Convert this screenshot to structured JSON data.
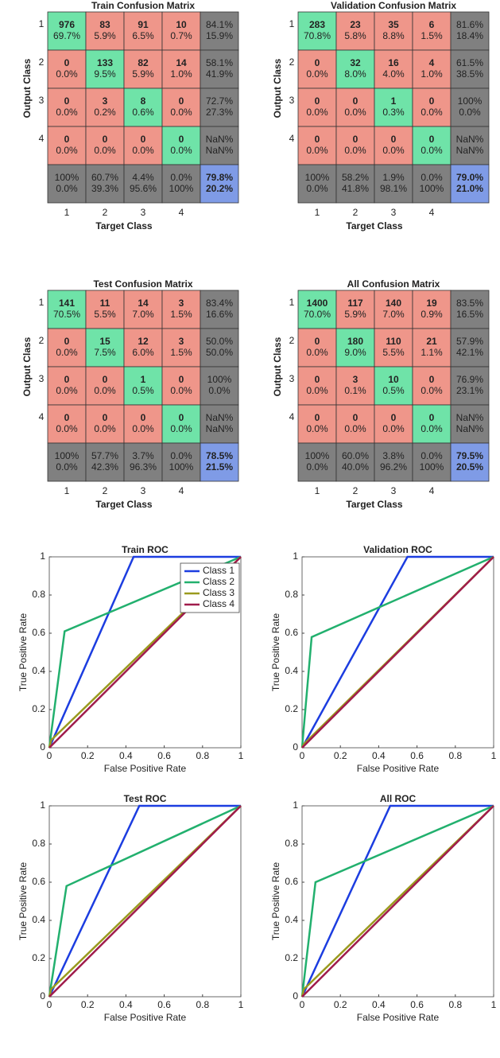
{
  "confusion_matrices": [
    {
      "title": "Train Confusion Matrix",
      "ylabel": "Output Class",
      "xlabel": "Target Class",
      "row_labels": [
        "1",
        "2",
        "3",
        "4"
      ],
      "col_labels": [
        "1",
        "2",
        "3",
        "4"
      ],
      "cells": [
        [
          [
            "976",
            "69.7%"
          ],
          [
            "83",
            "5.9%"
          ],
          [
            "91",
            "6.5%"
          ],
          [
            "10",
            "0.7%"
          ],
          [
            "84.1%",
            "15.9%"
          ]
        ],
        [
          [
            "0",
            "0.0%"
          ],
          [
            "133",
            "9.5%"
          ],
          [
            "82",
            "5.9%"
          ],
          [
            "14",
            "1.0%"
          ],
          [
            "58.1%",
            "41.9%"
          ]
        ],
        [
          [
            "0",
            "0.0%"
          ],
          [
            "3",
            "0.2%"
          ],
          [
            "8",
            "0.6%"
          ],
          [
            "0",
            "0.0%"
          ],
          [
            "72.7%",
            "27.3%"
          ]
        ],
        [
          [
            "0",
            "0.0%"
          ],
          [
            "0",
            "0.0%"
          ],
          [
            "0",
            "0.0%"
          ],
          [
            "0",
            "0.0%"
          ],
          [
            "NaN%",
            "NaN%"
          ]
        ],
        [
          [
            "100%",
            "0.0%"
          ],
          [
            "60.7%",
            "39.3%"
          ],
          [
            "4.4%",
            "95.6%"
          ],
          [
            "0.0%",
            "100%"
          ],
          [
            "79.8%",
            "20.2%"
          ]
        ]
      ]
    },
    {
      "title": "Validation Confusion Matrix",
      "ylabel": "Output Class",
      "xlabel": "Target Class",
      "row_labels": [
        "1",
        "2",
        "3",
        "4"
      ],
      "col_labels": [
        "1",
        "2",
        "3",
        "4"
      ],
      "cells": [
        [
          [
            "283",
            "70.8%"
          ],
          [
            "23",
            "5.8%"
          ],
          [
            "35",
            "8.8%"
          ],
          [
            "6",
            "1.5%"
          ],
          [
            "81.6%",
            "18.4%"
          ]
        ],
        [
          [
            "0",
            "0.0%"
          ],
          [
            "32",
            "8.0%"
          ],
          [
            "16",
            "4.0%"
          ],
          [
            "4",
            "1.0%"
          ],
          [
            "61.5%",
            "38.5%"
          ]
        ],
        [
          [
            "0",
            "0.0%"
          ],
          [
            "0",
            "0.0%"
          ],
          [
            "1",
            "0.3%"
          ],
          [
            "0",
            "0.0%"
          ],
          [
            "100%",
            "0.0%"
          ]
        ],
        [
          [
            "0",
            "0.0%"
          ],
          [
            "0",
            "0.0%"
          ],
          [
            "0",
            "0.0%"
          ],
          [
            "0",
            "0.0%"
          ],
          [
            "NaN%",
            "NaN%"
          ]
        ],
        [
          [
            "100%",
            "0.0%"
          ],
          [
            "58.2%",
            "41.8%"
          ],
          [
            "1.9%",
            "98.1%"
          ],
          [
            "0.0%",
            "100%"
          ],
          [
            "79.0%",
            "21.0%"
          ]
        ]
      ]
    },
    {
      "title": "Test Confusion Matrix",
      "ylabel": "Output Class",
      "xlabel": "Target Class",
      "row_labels": [
        "1",
        "2",
        "3",
        "4"
      ],
      "col_labels": [
        "1",
        "2",
        "3",
        "4"
      ],
      "cells": [
        [
          [
            "141",
            "70.5%"
          ],
          [
            "11",
            "5.5%"
          ],
          [
            "14",
            "7.0%"
          ],
          [
            "3",
            "1.5%"
          ],
          [
            "83.4%",
            "16.6%"
          ]
        ],
        [
          [
            "0",
            "0.0%"
          ],
          [
            "15",
            "7.5%"
          ],
          [
            "12",
            "6.0%"
          ],
          [
            "3",
            "1.5%"
          ],
          [
            "50.0%",
            "50.0%"
          ]
        ],
        [
          [
            "0",
            "0.0%"
          ],
          [
            "0",
            "0.0%"
          ],
          [
            "1",
            "0.5%"
          ],
          [
            "0",
            "0.0%"
          ],
          [
            "100%",
            "0.0%"
          ]
        ],
        [
          [
            "0",
            "0.0%"
          ],
          [
            "0",
            "0.0%"
          ],
          [
            "0",
            "0.0%"
          ],
          [
            "0",
            "0.0%"
          ],
          [
            "NaN%",
            "NaN%"
          ]
        ],
        [
          [
            "100%",
            "0.0%"
          ],
          [
            "57.7%",
            "42.3%"
          ],
          [
            "3.7%",
            "96.3%"
          ],
          [
            "0.0%",
            "100%"
          ],
          [
            "78.5%",
            "21.5%"
          ]
        ]
      ]
    },
    {
      "title": "All Confusion Matrix",
      "ylabel": "Output Class",
      "xlabel": "Target Class",
      "row_labels": [
        "1",
        "2",
        "3",
        "4"
      ],
      "col_labels": [
        "1",
        "2",
        "3",
        "4"
      ],
      "cells": [
        [
          [
            "1400",
            "70.0%"
          ],
          [
            "117",
            "5.9%"
          ],
          [
            "140",
            "7.0%"
          ],
          [
            "19",
            "0.9%"
          ],
          [
            "83.5%",
            "16.5%"
          ]
        ],
        [
          [
            "0",
            "0.0%"
          ],
          [
            "180",
            "9.0%"
          ],
          [
            "110",
            "5.5%"
          ],
          [
            "21",
            "1.1%"
          ],
          [
            "57.9%",
            "42.1%"
          ]
        ],
        [
          [
            "0",
            "0.0%"
          ],
          [
            "3",
            "0.1%"
          ],
          [
            "10",
            "0.5%"
          ],
          [
            "0",
            "0.0%"
          ],
          [
            "76.9%",
            "23.1%"
          ]
        ],
        [
          [
            "0",
            "0.0%"
          ],
          [
            "0",
            "0.0%"
          ],
          [
            "0",
            "0.0%"
          ],
          [
            "0",
            "0.0%"
          ],
          [
            "NaN%",
            "NaN%"
          ]
        ],
        [
          [
            "100%",
            "0.0%"
          ],
          [
            "60.0%",
            "40.0%"
          ],
          [
            "3.8%",
            "96.2%"
          ],
          [
            "0.0%",
            "100%"
          ],
          [
            "79.5%",
            "20.5%"
          ]
        ]
      ]
    }
  ],
  "chart_data": [
    {
      "type": "line",
      "title": "Train ROC",
      "xlabel": "False Positive Rate",
      "ylabel": "True Positive Rate",
      "xlim": [
        0,
        1
      ],
      "ylim": [
        0,
        1
      ],
      "xticks": [
        0,
        0.2,
        0.4,
        0.6,
        0.8,
        1
      ],
      "yticks": [
        0,
        0.2,
        0.4,
        0.6,
        0.8,
        1
      ],
      "legend": "upper right",
      "series": [
        {
          "name": "Class 1",
          "color": "#1c3de0",
          "x": [
            0,
            0.44,
            1
          ],
          "values": [
            0,
            1,
            1
          ]
        },
        {
          "name": "Class 2",
          "color": "#22b06e",
          "x": [
            0,
            0.08,
            1
          ],
          "values": [
            0,
            0.61,
            1
          ]
        },
        {
          "name": "Class 3",
          "color": "#9a9a1e",
          "x": [
            0,
            0.01,
            1
          ],
          "values": [
            0,
            0.04,
            1
          ]
        },
        {
          "name": "Class 4",
          "color": "#a01c4c",
          "x": [
            0,
            1
          ],
          "values": [
            0,
            1
          ]
        }
      ]
    },
    {
      "type": "line",
      "title": "Validation ROC",
      "xlabel": "False Positive Rate",
      "ylabel": "True Positive Rate",
      "xlim": [
        0,
        1
      ],
      "ylim": [
        0,
        1
      ],
      "xticks": [
        0,
        0.2,
        0.4,
        0.6,
        0.8,
        1
      ],
      "yticks": [
        0,
        0.2,
        0.4,
        0.6,
        0.8,
        1
      ],
      "series": [
        {
          "name": "Class 1",
          "color": "#1c3de0",
          "x": [
            0,
            0.55,
            1
          ],
          "values": [
            0,
            1,
            1
          ]
        },
        {
          "name": "Class 2",
          "color": "#22b06e",
          "x": [
            0,
            0.05,
            1
          ],
          "values": [
            0,
            0.58,
            1
          ]
        },
        {
          "name": "Class 3",
          "color": "#9a9a1e",
          "x": [
            0,
            0.01,
            1
          ],
          "values": [
            0,
            0.02,
            1
          ]
        },
        {
          "name": "Class 4",
          "color": "#a01c4c",
          "x": [
            0,
            1
          ],
          "values": [
            0,
            1
          ]
        }
      ]
    },
    {
      "type": "line",
      "title": "Test ROC",
      "xlabel": "False Positive Rate",
      "ylabel": "True Positive Rate",
      "xlim": [
        0,
        1
      ],
      "ylim": [
        0,
        1
      ],
      "xticks": [
        0,
        0.2,
        0.4,
        0.6,
        0.8,
        1
      ],
      "yticks": [
        0,
        0.2,
        0.4,
        0.6,
        0.8,
        1
      ],
      "series": [
        {
          "name": "Class 1",
          "color": "#1c3de0",
          "x": [
            0,
            0.47,
            1
          ],
          "values": [
            0,
            1,
            1
          ]
        },
        {
          "name": "Class 2",
          "color": "#22b06e",
          "x": [
            0,
            0.09,
            1
          ],
          "values": [
            0,
            0.58,
            1
          ]
        },
        {
          "name": "Class 3",
          "color": "#9a9a1e",
          "x": [
            0,
            0.01,
            1
          ],
          "values": [
            0,
            0.04,
            1
          ]
        },
        {
          "name": "Class 4",
          "color": "#a01c4c",
          "x": [
            0,
            1
          ],
          "values": [
            0,
            1
          ]
        }
      ]
    },
    {
      "type": "line",
      "title": "All ROC",
      "xlabel": "False Positive Rate",
      "ylabel": "True Positive Rate",
      "xlim": [
        0,
        1
      ],
      "ylim": [
        0,
        1
      ],
      "xticks": [
        0,
        0.2,
        0.4,
        0.6,
        0.8,
        1
      ],
      "yticks": [
        0,
        0.2,
        0.4,
        0.6,
        0.8,
        1
      ],
      "series": [
        {
          "name": "Class 1",
          "color": "#1c3de0",
          "x": [
            0,
            0.46,
            1
          ],
          "values": [
            0,
            1,
            1
          ]
        },
        {
          "name": "Class 2",
          "color": "#22b06e",
          "x": [
            0,
            0.07,
            1
          ],
          "values": [
            0,
            0.6,
            1
          ]
        },
        {
          "name": "Class 3",
          "color": "#9a9a1e",
          "x": [
            0,
            0.01,
            1
          ],
          "values": [
            0,
            0.04,
            1
          ]
        },
        {
          "name": "Class 4",
          "color": "#a01c4c",
          "x": [
            0,
            1
          ],
          "values": [
            0,
            1
          ]
        }
      ]
    }
  ]
}
